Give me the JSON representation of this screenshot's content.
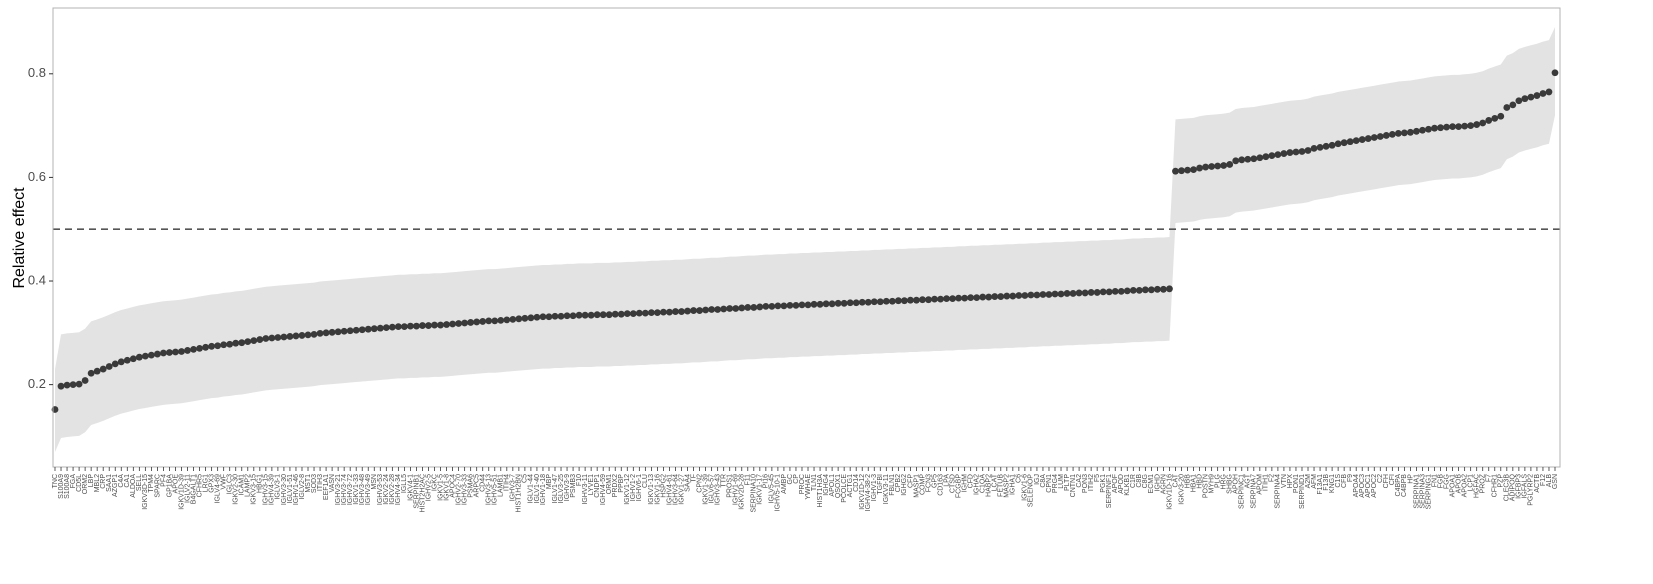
{
  "chart_data": {
    "type": "pointrange",
    "y_label": "Relative effect",
    "ylim": [
      0.041,
      0.927
    ],
    "yticks": [
      0.2,
      0.4,
      0.6,
      0.8
    ],
    "reference_line": 0.5,
    "grid": false,
    "point_color": "#3a3a3a",
    "band_color": "#e3e3e3",
    "categories": [
      "TNC",
      "S100A9",
      "S100A8",
      "FGA",
      "CD5L",
      "ORM2",
      "LBP",
      "MBL2",
      "CRP",
      "SAA1",
      "AZGP1",
      "C4A",
      "CA1",
      "ALDOA",
      "SELL",
      "IGKV3D-15",
      "TPM4",
      "SPARC",
      "PF4",
      "GP1BA",
      "APOE",
      "IGKV1D-39",
      "IGLV2-11",
      "B4GALT1",
      "CFHR5",
      "LRG1",
      "GPX3",
      "IGLV4-69",
      "VWF",
      "IGLC3",
      "IGKV2-30",
      "ICAM1",
      "LAMP2",
      "IGKV3-15",
      "HBG1",
      "IGHV3-15",
      "IGHV4-39",
      "IGLV3-1",
      "IGHV3-30",
      "IGLV1-51",
      "IGHV1-46",
      "IGLV2-8",
      "MST1",
      "SOD3",
      "ITIH3",
      "EEF1A1",
      "VASN",
      "IGHV3-21",
      "IGHV3-74",
      "IGHV3-72",
      "IGKV1-33",
      "IGHV3-48",
      "IGHV3-49",
      "MSN",
      "IGHV3-53",
      "IGKV2-24",
      "IGKV2-28",
      "IGHV4-34",
      "IGLL5",
      "IGKV4-1",
      "SERPINB1",
      "HIST2H2AC",
      "IGHV2-5",
      "IGKC",
      "IGKV1-5",
      "IGKV1-8",
      "APOC4",
      "IGHV2-70",
      "IGHV3-33",
      "PSMA6",
      "ARPC5",
      "CD44",
      "IGHV3-13",
      "IGHV5-51",
      "LAMB1",
      "ITIH4",
      "IGHV3-7",
      "HIST1H2BN",
      "C5",
      "IGLV1-44",
      "IGLV1-40",
      "IGHV1-18",
      "MBP",
      "IGLV1-47",
      "IGLV3-25",
      "IGHV3-9",
      "PSMB3",
      "F10",
      "IGHV3-11",
      "LYVE1",
      "CNDP1",
      "IGHV4-59",
      "ORM1",
      "PRDX2",
      "PPBP",
      "IGKV1-12",
      "IGHV1-2",
      "IGHV6-1",
      "CLU",
      "IGKV1-13",
      "IGKV1-16",
      "HSPG2",
      "IGHV4-61",
      "IGHV3-64",
      "IGKV1-27",
      "SAA4",
      "TF",
      "CPN2",
      "IGKV1-39",
      "IGLV6-57",
      "IGHV3-43",
      "TTR",
      "PROS1",
      "IGHV1-69",
      "IGKV2D-28",
      "F11",
      "SERPINA10",
      "IGKV1-17",
      "PI16",
      "IGLV5-45",
      "IGHV5-10-1",
      "AMBP",
      "GC",
      "CP",
      "PROC",
      "YWHAE",
      "TLN1",
      "HIST1H3A",
      "IGHG4",
      "APOL1",
      "QSOX1",
      "PCOLCE",
      "ACTG1",
      "CD14",
      "IGKV1D-12",
      "IGHV4-38-2",
      "IGHV1-3",
      "TGFBI",
      "IGKV3-11",
      "FBLN1",
      "CPB2",
      "IGHG2",
      "CFP",
      "MASP1",
      "COMP",
      "FCN3",
      "GP5",
      "CD163",
      "LPA",
      "CTSD",
      "FCGBP",
      "IGHM",
      "CFD",
      "IGHA2",
      "C1QA",
      "HABP2",
      "LCAT",
      "FETUB",
      "MASP2",
      "IGHA1",
      "C6",
      "IGKV1-6",
      "SELENOP",
      "IGJ",
      "C8A",
      "CPN1",
      "PRG4",
      "LUM",
      "PLTP",
      "CNTN1",
      "CA2",
      "PON3",
      "ITIH2",
      "F5",
      "PGK1",
      "SERPINF1",
      "APOF",
      "APOD",
      "KLKB1",
      "C1R",
      "C8B",
      "C8G",
      "ECM1",
      "IGHD",
      "AGRN",
      "IGKV1D-16",
      "CAT",
      "IGKV3-20",
      "HBB",
      "HBA1",
      "HBD",
      "POSTN",
      "MYH9",
      "PLG",
      "HRG",
      "SHBG",
      "APOH",
      "SERPINC1",
      "AGT",
      "SERPINA7",
      "APOM",
      "ITIH1",
      "F2",
      "SERPINA4",
      "VTN",
      "HPX",
      "PON1",
      "SERPIND1",
      "A2M",
      "AFM",
      "F13A1",
      "F13B",
      "KNG1",
      "C1S",
      "CFB",
      "F9",
      "APOA4",
      "APOC3",
      "APOC1",
      "APOC2",
      "C2",
      "CFH",
      "CFI",
      "C4BPA",
      "C4BPB",
      "HP",
      "SERPINA1",
      "SERPINA3",
      "SERPING1",
      "FN1",
      "FGB",
      "FGG",
      "APOA1",
      "APOB",
      "APOA2",
      "LCP1",
      "HGFAC",
      "PROZ",
      "F7",
      "CFHR1",
      "PZP",
      "CLEC3B",
      "ADIPOQ",
      "IGFBP3",
      "IGFALS",
      "PGLYRP2",
      "ACTB",
      "F12",
      "ALB",
      "GSN"
    ],
    "values": [
      0.152,
      0.197,
      0.199,
      0.2,
      0.201,
      0.208,
      0.222,
      0.226,
      0.23,
      0.235,
      0.24,
      0.244,
      0.247,
      0.25,
      0.253,
      0.255,
      0.257,
      0.259,
      0.261,
      0.262,
      0.263,
      0.264,
      0.266,
      0.268,
      0.27,
      0.272,
      0.274,
      0.275,
      0.277,
      0.278,
      0.28,
      0.281,
      0.283,
      0.285,
      0.287,
      0.289,
      0.29,
      0.291,
      0.292,
      0.293,
      0.294,
      0.295,
      0.296,
      0.297,
      0.299,
      0.3,
      0.301,
      0.302,
      0.303,
      0.304,
      0.305,
      0.306,
      0.307,
      0.308,
      0.309,
      0.31,
      0.311,
      0.312,
      0.312,
      0.313,
      0.313,
      0.314,
      0.314,
      0.315,
      0.315,
      0.316,
      0.317,
      0.318,
      0.319,
      0.32,
      0.321,
      0.322,
      0.323,
      0.323,
      0.324,
      0.325,
      0.326,
      0.327,
      0.328,
      0.329,
      0.33,
      0.331,
      0.331,
      0.332,
      0.332,
      0.333,
      0.333,
      0.334,
      0.334,
      0.334,
      0.335,
      0.335,
      0.335,
      0.336,
      0.336,
      0.337,
      0.337,
      0.338,
      0.338,
      0.339,
      0.339,
      0.34,
      0.34,
      0.341,
      0.341,
      0.342,
      0.343,
      0.343,
      0.344,
      0.345,
      0.345,
      0.346,
      0.347,
      0.347,
      0.348,
      0.349,
      0.349,
      0.35,
      0.351,
      0.351,
      0.352,
      0.352,
      0.353,
      0.353,
      0.354,
      0.354,
      0.355,
      0.355,
      0.356,
      0.356,
      0.357,
      0.357,
      0.358,
      0.358,
      0.359,
      0.359,
      0.36,
      0.36,
      0.361,
      0.361,
      0.362,
      0.362,
      0.363,
      0.363,
      0.364,
      0.364,
      0.365,
      0.365,
      0.366,
      0.366,
      0.367,
      0.367,
      0.368,
      0.368,
      0.369,
      0.369,
      0.37,
      0.37,
      0.371,
      0.371,
      0.372,
      0.372,
      0.373,
      0.373,
      0.374,
      0.374,
      0.375,
      0.375,
      0.376,
      0.376,
      0.377,
      0.377,
      0.378,
      0.378,
      0.379,
      0.379,
      0.38,
      0.38,
      0.381,
      0.382,
      0.382,
      0.383,
      0.383,
      0.384,
      0.384,
      0.385,
      0.612,
      0.613,
      0.614,
      0.615,
      0.618,
      0.62,
      0.621,
      0.622,
      0.623,
      0.625,
      0.632,
      0.634,
      0.635,
      0.636,
      0.638,
      0.64,
      0.642,
      0.644,
      0.646,
      0.648,
      0.649,
      0.65,
      0.652,
      0.656,
      0.658,
      0.66,
      0.662,
      0.665,
      0.667,
      0.669,
      0.671,
      0.673,
      0.675,
      0.677,
      0.679,
      0.681,
      0.683,
      0.685,
      0.686,
      0.687,
      0.689,
      0.691,
      0.693,
      0.695,
      0.696,
      0.697,
      0.698,
      0.698,
      0.699,
      0.7,
      0.702,
      0.705,
      0.71,
      0.714,
      0.718,
      0.735,
      0.74,
      0.748,
      0.752,
      0.755,
      0.758,
      0.762,
      0.765,
      0.802
    ],
    "lower": [
      0.07,
      0.097,
      0.099,
      0.1,
      0.101,
      0.108,
      0.122,
      0.126,
      0.13,
      0.135,
      0.14,
      0.144,
      0.147,
      0.15,
      0.153,
      0.155,
      0.157,
      0.159,
      0.161,
      0.162,
      0.163,
      0.164,
      0.166,
      0.168,
      0.17,
      0.172,
      0.174,
      0.175,
      0.177,
      0.178,
      0.18,
      0.181,
      0.183,
      0.185,
      0.187,
      0.189,
      0.19,
      0.191,
      0.192,
      0.193,
      0.194,
      0.195,
      0.196,
      0.197,
      0.199,
      0.2,
      0.201,
      0.202,
      0.203,
      0.204,
      0.205,
      0.206,
      0.207,
      0.208,
      0.209,
      0.21,
      0.211,
      0.212,
      0.212,
      0.213,
      0.213,
      0.214,
      0.214,
      0.215,
      0.215,
      0.216,
      0.217,
      0.218,
      0.219,
      0.22,
      0.221,
      0.222,
      0.223,
      0.223,
      0.224,
      0.225,
      0.226,
      0.227,
      0.228,
      0.229,
      0.23,
      0.231,
      0.231,
      0.232,
      0.232,
      0.233,
      0.233,
      0.234,
      0.234,
      0.234,
      0.235,
      0.235,
      0.235,
      0.236,
      0.236,
      0.237,
      0.237,
      0.238,
      0.238,
      0.239,
      0.239,
      0.24,
      0.24,
      0.241,
      0.241,
      0.242,
      0.243,
      0.243,
      0.244,
      0.245,
      0.245,
      0.246,
      0.247,
      0.247,
      0.248,
      0.249,
      0.249,
      0.25,
      0.251,
      0.251,
      0.252,
      0.252,
      0.253,
      0.253,
      0.254,
      0.254,
      0.255,
      0.255,
      0.256,
      0.256,
      0.257,
      0.257,
      0.258,
      0.258,
      0.259,
      0.259,
      0.26,
      0.26,
      0.261,
      0.261,
      0.262,
      0.262,
      0.263,
      0.263,
      0.264,
      0.264,
      0.265,
      0.265,
      0.266,
      0.266,
      0.267,
      0.267,
      0.268,
      0.268,
      0.269,
      0.269,
      0.27,
      0.27,
      0.271,
      0.271,
      0.272,
      0.272,
      0.273,
      0.273,
      0.274,
      0.274,
      0.275,
      0.275,
      0.276,
      0.276,
      0.277,
      0.277,
      0.278,
      0.278,
      0.279,
      0.279,
      0.28,
      0.28,
      0.281,
      0.282,
      0.282,
      0.283,
      0.283,
      0.284,
      0.284,
      0.285,
      0.512,
      0.513,
      0.514,
      0.515,
      0.518,
      0.52,
      0.521,
      0.522,
      0.523,
      0.525,
      0.532,
      0.534,
      0.535,
      0.536,
      0.538,
      0.54,
      0.542,
      0.544,
      0.546,
      0.548,
      0.549,
      0.55,
      0.552,
      0.556,
      0.558,
      0.56,
      0.562,
      0.565,
      0.567,
      0.569,
      0.571,
      0.573,
      0.575,
      0.577,
      0.579,
      0.581,
      0.583,
      0.585,
      0.586,
      0.587,
      0.589,
      0.591,
      0.593,
      0.595,
      0.596,
      0.597,
      0.598,
      0.598,
      0.599,
      0.6,
      0.602,
      0.605,
      0.61,
      0.614,
      0.618,
      0.635,
      0.64,
      0.648,
      0.652,
      0.655,
      0.658,
      0.662,
      0.665,
      0.72
    ],
    "upper": [
      0.23,
      0.297,
      0.299,
      0.3,
      0.301,
      0.308,
      0.322,
      0.326,
      0.33,
      0.335,
      0.34,
      0.344,
      0.347,
      0.35,
      0.353,
      0.355,
      0.357,
      0.359,
      0.361,
      0.362,
      0.363,
      0.364,
      0.366,
      0.368,
      0.37,
      0.372,
      0.374,
      0.375,
      0.377,
      0.378,
      0.38,
      0.381,
      0.383,
      0.385,
      0.387,
      0.389,
      0.39,
      0.391,
      0.392,
      0.393,
      0.394,
      0.395,
      0.396,
      0.397,
      0.399,
      0.4,
      0.401,
      0.402,
      0.403,
      0.404,
      0.405,
      0.406,
      0.407,
      0.408,
      0.409,
      0.41,
      0.411,
      0.412,
      0.412,
      0.413,
      0.413,
      0.414,
      0.414,
      0.415,
      0.415,
      0.416,
      0.417,
      0.418,
      0.419,
      0.42,
      0.421,
      0.422,
      0.423,
      0.423,
      0.424,
      0.425,
      0.426,
      0.427,
      0.428,
      0.429,
      0.43,
      0.431,
      0.431,
      0.432,
      0.432,
      0.433,
      0.433,
      0.434,
      0.434,
      0.434,
      0.435,
      0.435,
      0.435,
      0.436,
      0.436,
      0.437,
      0.437,
      0.438,
      0.438,
      0.439,
      0.439,
      0.44,
      0.44,
      0.441,
      0.441,
      0.442,
      0.443,
      0.443,
      0.444,
      0.445,
      0.445,
      0.446,
      0.447,
      0.447,
      0.448,
      0.449,
      0.449,
      0.45,
      0.451,
      0.451,
      0.452,
      0.452,
      0.453,
      0.453,
      0.454,
      0.454,
      0.455,
      0.455,
      0.456,
      0.456,
      0.457,
      0.457,
      0.458,
      0.458,
      0.459,
      0.459,
      0.46,
      0.46,
      0.461,
      0.461,
      0.462,
      0.462,
      0.463,
      0.463,
      0.464,
      0.464,
      0.465,
      0.465,
      0.466,
      0.466,
      0.467,
      0.467,
      0.468,
      0.468,
      0.469,
      0.469,
      0.47,
      0.47,
      0.471,
      0.471,
      0.472,
      0.472,
      0.473,
      0.473,
      0.474,
      0.474,
      0.475,
      0.475,
      0.476,
      0.476,
      0.477,
      0.477,
      0.478,
      0.478,
      0.479,
      0.479,
      0.48,
      0.48,
      0.481,
      0.482,
      0.482,
      0.483,
      0.483,
      0.484,
      0.484,
      0.485,
      0.712,
      0.713,
      0.714,
      0.715,
      0.718,
      0.72,
      0.721,
      0.722,
      0.723,
      0.725,
      0.732,
      0.734,
      0.735,
      0.736,
      0.738,
      0.74,
      0.742,
      0.744,
      0.746,
      0.748,
      0.749,
      0.75,
      0.752,
      0.756,
      0.758,
      0.76,
      0.762,
      0.765,
      0.767,
      0.769,
      0.771,
      0.773,
      0.775,
      0.777,
      0.779,
      0.781,
      0.783,
      0.785,
      0.786,
      0.787,
      0.789,
      0.791,
      0.793,
      0.795,
      0.796,
      0.797,
      0.798,
      0.798,
      0.799,
      0.8,
      0.802,
      0.805,
      0.81,
      0.814,
      0.818,
      0.835,
      0.84,
      0.848,
      0.852,
      0.855,
      0.858,
      0.862,
      0.865,
      0.89
    ]
  }
}
